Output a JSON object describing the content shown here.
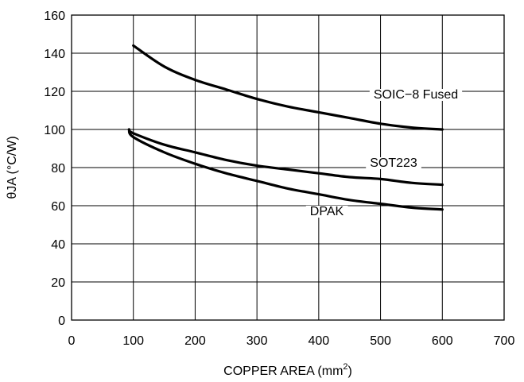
{
  "chart_data": {
    "type": "line",
    "xlabel": "COPPER AREA (mm",
    "xlabel_superscript": "2",
    "xlabel_suffix": ")",
    "ylabel": "θJA (°C/W)",
    "xlim": [
      0,
      700
    ],
    "ylim": [
      0,
      160
    ],
    "xticks": [
      0,
      100,
      200,
      300,
      400,
      500,
      600,
      700
    ],
    "yticks": [
      0,
      20,
      40,
      60,
      80,
      100,
      120,
      140,
      160
    ],
    "grid": true,
    "series": [
      {
        "name": "SOIC−8 Fused",
        "x": [
          100,
          150,
          200,
          250,
          300,
          350,
          400,
          450,
          500,
          550,
          600
        ],
        "y": [
          144,
          133,
          126,
          121,
          116,
          112,
          109,
          106,
          103,
          101,
          100
        ]
      },
      {
        "name": "SOT223",
        "x": [
          93,
          100,
          150,
          200,
          250,
          300,
          350,
          400,
          450,
          500,
          550,
          600
        ],
        "y": [
          100,
          98,
          92,
          88,
          84,
          81,
          79,
          77,
          75,
          74,
          72,
          71
        ]
      },
      {
        "name": "DPAK",
        "x": [
          93,
          100,
          150,
          200,
          250,
          300,
          350,
          400,
          450,
          500,
          550,
          600
        ],
        "y": [
          100,
          96,
          88,
          82,
          77,
          73,
          69,
          66,
          63,
          61,
          59,
          58
        ]
      }
    ]
  }
}
